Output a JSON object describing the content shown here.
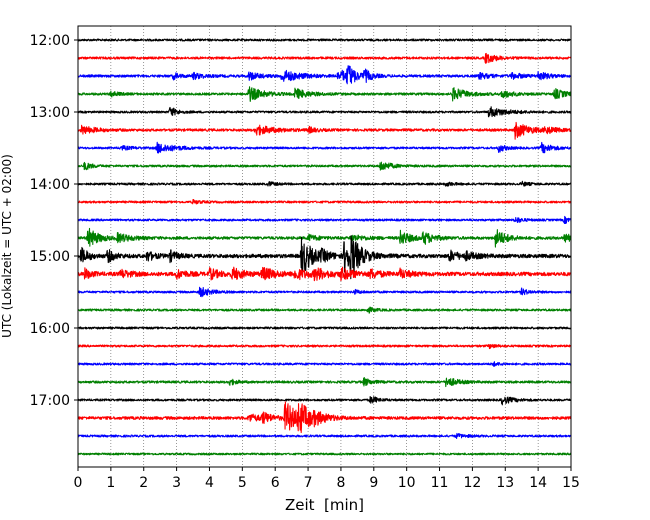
{
  "chart_data": {
    "type": "line",
    "title": "",
    "xlabel": "Zeit  [min]",
    "ylabel": "UTC (Lokalzeit = UTC + 02:00)",
    "xlim": [
      0,
      15
    ],
    "x_ticks": [
      0,
      1,
      2,
      3,
      4,
      5,
      6,
      7,
      8,
      9,
      10,
      11,
      12,
      13,
      14,
      15
    ],
    "x_tick_labels": [
      "0",
      "1",
      "2",
      "3",
      "4",
      "5",
      "6",
      "7",
      "8",
      "9",
      "10",
      "11",
      "12",
      "13",
      "14",
      "15"
    ],
    "grid": "vertical dotted at each minute",
    "legend": "none",
    "trace_interval_minutes": 15,
    "y_ticks": [
      "12:00",
      "13:00",
      "14:00",
      "15:00",
      "16:00",
      "17:00"
    ],
    "color_cycle": [
      "#000000",
      "#ff0000",
      "#0000ff",
      "#008000"
    ],
    "series": [
      {
        "start": "12:00",
        "color": "#000000",
        "noise": 1.0,
        "events": []
      },
      {
        "start": "12:15",
        "color": "#ff0000",
        "noise": 1.1,
        "events": [
          [
            12.4,
            5,
            0.3
          ]
        ]
      },
      {
        "start": "12:30",
        "color": "#0000ff",
        "noise": 1.2,
        "events": [
          [
            2.9,
            3,
            0.2
          ],
          [
            3.5,
            3,
            0.3
          ],
          [
            5.2,
            4,
            0.3
          ],
          [
            6.2,
            6,
            0.5
          ],
          [
            7.9,
            3,
            0.3
          ],
          [
            8.0,
            3,
            0.3
          ],
          [
            8.2,
            11,
            0.2
          ],
          [
            8.7,
            6,
            0.2
          ],
          [
            12.2,
            3,
            0.3
          ],
          [
            13.2,
            3,
            0.3
          ],
          [
            14.0,
            4,
            0.3
          ]
        ]
      },
      {
        "start": "12:45",
        "color": "#008000",
        "noise": 1.1,
        "events": [
          [
            1.0,
            3,
            0.2
          ],
          [
            5.2,
            7,
            0.4
          ],
          [
            6.6,
            5,
            0.4
          ],
          [
            11.4,
            6,
            0.4
          ],
          [
            12.9,
            4,
            0.3
          ],
          [
            14.5,
            5,
            0.3
          ]
        ]
      },
      {
        "start": "13:00",
        "color": "#000000",
        "noise": 1.0,
        "events": [
          [
            2.8,
            5,
            0.2
          ],
          [
            12.5,
            5,
            0.5
          ]
        ]
      },
      {
        "start": "13:15",
        "color": "#ff0000",
        "noise": 1.2,
        "events": [
          [
            0.1,
            4,
            0.4
          ],
          [
            5.4,
            5,
            0.5
          ],
          [
            7.0,
            3,
            0.2
          ],
          [
            13.3,
            8,
            0.4
          ],
          [
            14.2,
            3,
            0.3
          ]
        ]
      },
      {
        "start": "13:30",
        "color": "#0000ff",
        "noise": 1.0,
        "events": [
          [
            1.3,
            2,
            0.3
          ],
          [
            2.4,
            5,
            0.5
          ],
          [
            12.8,
            4,
            0.2
          ],
          [
            14.1,
            5,
            0.3
          ]
        ]
      },
      {
        "start": "13:45",
        "color": "#008000",
        "noise": 1.0,
        "events": [
          [
            0.2,
            4,
            0.2
          ],
          [
            9.2,
            5,
            0.3
          ]
        ]
      },
      {
        "start": "14:00",
        "color": "#000000",
        "noise": 1.0,
        "events": [
          [
            5.8,
            2,
            0.2
          ],
          [
            11.2,
            2,
            0.2
          ],
          [
            13.5,
            2,
            0.2
          ]
        ]
      },
      {
        "start": "14:15",
        "color": "#ff0000",
        "noise": 1.0,
        "events": [
          [
            3.5,
            2,
            0.2
          ]
        ]
      },
      {
        "start": "14:30",
        "color": "#0000ff",
        "noise": 1.0,
        "events": [
          [
            13.3,
            3,
            0.2
          ],
          [
            14.8,
            3,
            0.2
          ]
        ]
      },
      {
        "start": "14:45",
        "color": "#008000",
        "noise": 1.3,
        "events": [
          [
            0.3,
            10,
            0.3
          ],
          [
            1.2,
            4,
            0.4
          ],
          [
            7.0,
            3,
            0.3
          ],
          [
            8.3,
            3,
            0.4
          ],
          [
            9.8,
            7,
            0.3
          ],
          [
            10.5,
            6,
            0.3
          ],
          [
            12.7,
            9,
            0.3
          ],
          [
            14.8,
            4,
            0.3
          ]
        ]
      },
      {
        "start": "15:00",
        "color": "#000000",
        "noise": 1.8,
        "events": [
          [
            0.1,
            8,
            0.2
          ],
          [
            0.9,
            6,
            0.2
          ],
          [
            2.1,
            5,
            0.2
          ],
          [
            2.8,
            5,
            0.2
          ],
          [
            6.8,
            20,
            0.3
          ],
          [
            7.4,
            4,
            0.3
          ],
          [
            8.1,
            17,
            0.3
          ],
          [
            8.3,
            13,
            0.3
          ],
          [
            11.3,
            5,
            0.3
          ],
          [
            11.8,
            3,
            0.3
          ]
        ]
      },
      {
        "start": "15:15",
        "color": "#ff0000",
        "noise": 1.8,
        "events": [
          [
            0.2,
            5,
            0.2
          ],
          [
            1.3,
            4,
            0.3
          ],
          [
            3.0,
            4,
            0.3
          ],
          [
            4.0,
            5,
            0.3
          ],
          [
            4.7,
            6,
            0.3
          ],
          [
            5.6,
            6,
            0.4
          ],
          [
            6.6,
            5,
            0.4
          ],
          [
            7.2,
            5,
            0.4
          ],
          [
            8.0,
            5,
            0.4
          ],
          [
            8.9,
            4,
            0.3
          ],
          [
            9.8,
            4,
            0.3
          ]
        ]
      },
      {
        "start": "15:30",
        "color": "#0000ff",
        "noise": 1.0,
        "events": [
          [
            3.7,
            5,
            0.3
          ],
          [
            8.4,
            2,
            0.2
          ],
          [
            13.5,
            3,
            0.2
          ]
        ]
      },
      {
        "start": "15:45",
        "color": "#008000",
        "noise": 1.0,
        "events": [
          [
            8.8,
            3,
            0.2
          ]
        ]
      },
      {
        "start": "16:00",
        "color": "#000000",
        "noise": 1.0,
        "events": []
      },
      {
        "start": "16:15",
        "color": "#ff0000",
        "noise": 1.0,
        "events": [
          [
            12.5,
            2,
            0.2
          ]
        ]
      },
      {
        "start": "16:30",
        "color": "#0000ff",
        "noise": 1.0,
        "events": [
          [
            12.6,
            2,
            0.2
          ]
        ]
      },
      {
        "start": "16:45",
        "color": "#008000",
        "noise": 1.1,
        "events": [
          [
            4.6,
            3,
            0.2
          ],
          [
            8.7,
            4,
            0.2
          ],
          [
            11.2,
            5,
            0.3
          ]
        ]
      },
      {
        "start": "17:00",
        "color": "#000000",
        "noise": 1.0,
        "events": [
          [
            8.9,
            4,
            0.2
          ],
          [
            12.9,
            4,
            0.3
          ]
        ]
      },
      {
        "start": "17:15",
        "color": "#ff0000",
        "noise": 1.4,
        "events": [
          [
            5.2,
            4,
            0.3
          ],
          [
            5.6,
            5,
            0.3
          ],
          [
            6.3,
            16,
            0.4
          ],
          [
            6.7,
            12,
            0.4
          ],
          [
            7.2,
            3,
            0.3
          ]
        ]
      },
      {
        "start": "17:30",
        "color": "#0000ff",
        "noise": 1.0,
        "events": [
          [
            11.5,
            2,
            0.3
          ]
        ]
      },
      {
        "start": "17:45",
        "color": "#008000",
        "noise": 0.9,
        "events": []
      }
    ]
  }
}
